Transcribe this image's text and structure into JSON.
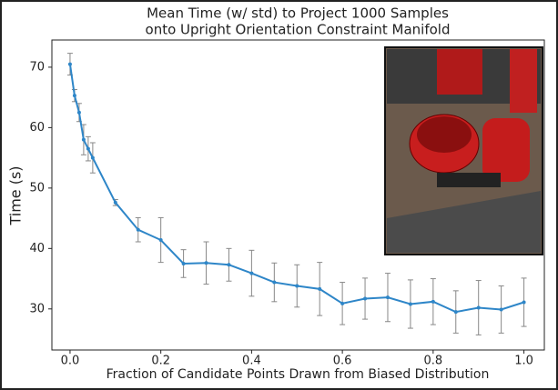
{
  "chart_data": {
    "type": "line",
    "title": [
      "Mean Time (w/ std) to Project 1000 Samples",
      "onto Upright Orientation Constraint Manifold"
    ],
    "xlabel": "Fraction of Candidate Points Drawn from Biased Distribution",
    "ylabel": "Time (s)",
    "x": [
      0.0,
      0.01,
      0.02,
      0.03,
      0.04,
      0.05,
      0.1,
      0.15,
      0.2,
      0.25,
      0.3,
      0.35,
      0.4,
      0.45,
      0.5,
      0.55,
      0.6,
      0.65,
      0.7,
      0.75,
      0.8,
      0.85,
      0.9,
      0.95,
      1.0
    ],
    "series": [
      {
        "name": "Time",
        "color": "#2e86c8",
        "values": [
          70.5,
          65.3,
          62.5,
          58.0,
          56.5,
          55.0,
          47.6,
          43.1,
          41.4,
          37.5,
          37.6,
          37.3,
          35.9,
          34.4,
          33.8,
          33.3,
          30.9,
          31.7,
          31.9,
          30.8,
          31.2,
          29.5,
          30.2,
          29.9,
          31.1
        ],
        "errors": [
          1.8,
          1.0,
          1.5,
          2.5,
          2.0,
          2.5,
          0.5,
          2.0,
          3.7,
          2.3,
          3.5,
          2.7,
          3.8,
          3.2,
          3.5,
          4.4,
          3.5,
          3.4,
          4.0,
          4.0,
          3.8,
          3.5,
          4.5,
          3.9,
          4.0
        ]
      }
    ],
    "xlim": [
      -0.04,
      1.045
    ],
    "ylim": [
      23.2,
      74.5
    ],
    "xticks": [
      {
        "value": 0,
        "label": "0.0"
      },
      0.2,
      0.4,
      0.6,
      0.8,
      {
        "value": 1,
        "label": "1.0"
      }
    ],
    "yticks": [
      30,
      40,
      50,
      60,
      70
    ]
  }
}
